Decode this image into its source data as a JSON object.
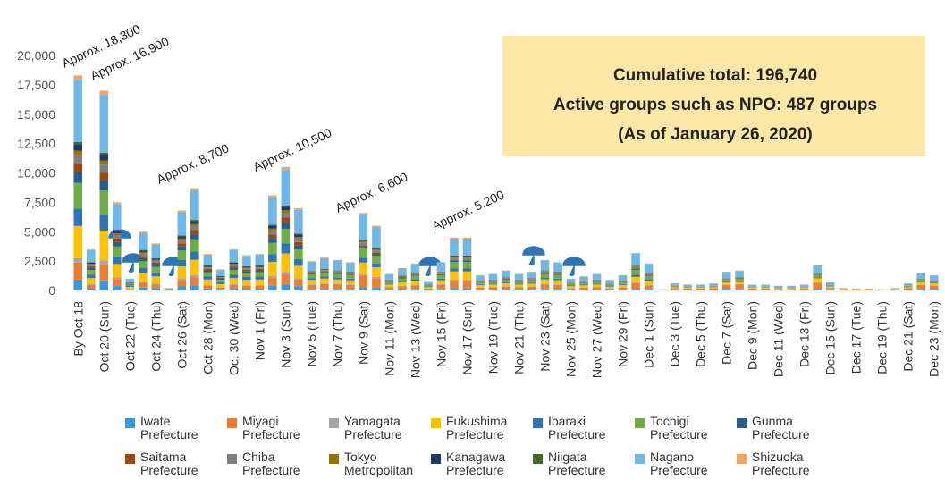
{
  "chart_data": {
    "type": "stacked_bar",
    "categories": [
      "By Oct 18",
      null,
      "Oct 20 (Sun)",
      null,
      "Oct 22 (Tue)",
      null,
      "Oct 24 (Thu)",
      null,
      "Oct 26 (Sat)",
      null,
      "Oct 28 (Mon)",
      null,
      "Oct 30 (Wed)",
      null,
      "Nov 1 (Fri)",
      null,
      "Nov 3 (Sun)",
      null,
      "Nov 5 (Tue)",
      null,
      "Nov 7 (Thu)",
      null,
      "Nov 9 (Sat)",
      null,
      "Nov 11 (Mon)",
      null,
      "Nov 13 (Wed)",
      null,
      "Nov 15 (Fri)",
      null,
      "Nov 17 (Sun)",
      null,
      "Nov 19 (Tue)",
      null,
      "Nov 21 (Thu)",
      null,
      "Nov 23 (Sat)",
      null,
      "Nov 25 (Mon)",
      null,
      "Nov 27 (Wed)",
      null,
      "Nov 29 (Fri)",
      null,
      "Dec 1 (Sun)",
      null,
      "Dec 3 (Tue)",
      null,
      "Dec 5 (Thu)",
      null,
      "Dec 7 (Sat)",
      null,
      "Dec 9 (Mon)",
      null,
      "Dec 11 (Wed)",
      null,
      "Dec 13 (Fri)",
      null,
      "Dec 15 (Sun)",
      null,
      "Dec 17 (Tue)",
      null,
      "Dec 19 (Thu)",
      null,
      "Dec 21 (Sat)",
      null,
      "Dec 23 (Mon)"
    ],
    "ylim": [
      0,
      20000
    ],
    "yticks": [
      0,
      {
        "value": 2500,
        "label": "2,500"
      },
      {
        "value": 5000,
        "label": "5,000"
      },
      {
        "value": 7500,
        "label": "7,500"
      },
      {
        "value": 10000,
        "label": "10,000"
      },
      {
        "value": 12500,
        "label": "12,500"
      },
      {
        "value": 15000,
        "label": "15,000"
      },
      {
        "value": 17500,
        "label": "17,500"
      },
      {
        "value": 20000,
        "label": "20,000"
      }
    ],
    "annotations": [
      "Approx. 18,300",
      "Approx. 16,900",
      "Approx. 8,700",
      "Approx. 10,500",
      "Approx. 6,600",
      "Approx. 5,200"
    ],
    "callout": [
      "Cumulative total: 196,740",
      "Active groups such as NPO: 487 groups",
      "(As of January 26, 2020)"
    ],
    "series": [
      {
        "name": "Iwate Prefecture",
        "color": "#3a9ad9",
        "values": [
          915,
          175,
          850,
          375,
          50,
          250,
          200,
          10,
          340,
          435,
          155,
          90,
          175,
          150,
          155,
          405,
          525,
          350,
          100,
          112,
          104,
          96,
          264,
          220,
          56,
          76,
          92,
          32,
          96,
          180,
          180,
          52,
          56,
          68,
          56,
          64,
          104,
          96,
          40,
          48,
          56,
          36,
          52,
          128,
          92,
          5,
          30,
          25,
          25,
          30,
          80,
          85,
          25,
          25,
          20,
          20,
          25,
          110,
          35,
          10,
          8,
          8,
          5,
          10,
          30,
          75,
          65
        ]
      },
      {
        "name": "Miyagi Prefecture",
        "color": "#ed7d31",
        "values": [
          1464,
          280,
          1360,
          600,
          80,
          400,
          320,
          16,
          544,
          696,
          248,
          144,
          280,
          240,
          248,
          648,
          840,
          560,
          375,
          420,
          390,
          360,
          990,
          825,
          210,
          285,
          345,
          120,
          360,
          675,
          675,
          195,
          210,
          255,
          210,
          240,
          390,
          360,
          150,
          180,
          210,
          135,
          195,
          480,
          345,
          25,
          150,
          125,
          125,
          150,
          400,
          425,
          125,
          125,
          100,
          100,
          125,
          550,
          175,
          50,
          38,
          38,
          25,
          50,
          150,
          375,
          325
        ]
      },
      {
        "name": "Yamagata Prefecture",
        "color": "#a5a5a5",
        "values": [
          366,
          70,
          340,
          150,
          20,
          100,
          80,
          4,
          136,
          174,
          62,
          36,
          70,
          60,
          62,
          162,
          210,
          140,
          50,
          56,
          52,
          48,
          132,
          110,
          28,
          38,
          46,
          16,
          48,
          90,
          90,
          26,
          28,
          34,
          28,
          32,
          52,
          48,
          20,
          24,
          28,
          18,
          26,
          64,
          46,
          2,
          12,
          10,
          10,
          12,
          32,
          34,
          10,
          10,
          8,
          8,
          10,
          44,
          14,
          4,
          3,
          3,
          2,
          4,
          12,
          30,
          26
        ]
      },
      {
        "name": "Fukushima Prefecture",
        "color": "#ffc000",
        "values": [
          2745,
          525,
          2550,
          1125,
          150,
          750,
          600,
          30,
          1020,
          1305,
          465,
          270,
          525,
          450,
          465,
          1215,
          1575,
          1050,
          375,
          420,
          390,
          360,
          990,
          825,
          210,
          285,
          345,
          120,
          360,
          675,
          675,
          195,
          210,
          255,
          210,
          240,
          390,
          360,
          150,
          180,
          210,
          135,
          195,
          480,
          345,
          15,
          90,
          75,
          75,
          90,
          240,
          255,
          75,
          75,
          60,
          60,
          75,
          330,
          105,
          30,
          23,
          23,
          15,
          30,
          90,
          225,
          195
        ]
      },
      {
        "name": "Ibaraki Prefecture",
        "color": "#2e75b6",
        "values": [
          1464,
          280,
          1360,
          600,
          80,
          400,
          320,
          16,
          544,
          696,
          248,
          144,
          280,
          240,
          248,
          648,
          840,
          560,
          150,
          168,
          156,
          144,
          396,
          330,
          84,
          114,
          138,
          48,
          144,
          270,
          270,
          78,
          84,
          102,
          84,
          96,
          156,
          144,
          60,
          72,
          84,
          54,
          78,
          192,
          138,
          3,
          18,
          15,
          15,
          18,
          48,
          51,
          15,
          15,
          12,
          12,
          15,
          66,
          21,
          6,
          5,
          5,
          3,
          6,
          18,
          45,
          39
        ]
      },
      {
        "name": "Tochigi Prefecture",
        "color": "#70ad47",
        "values": [
          2196,
          420,
          2040,
          900,
          120,
          600,
          480,
          24,
          816,
          1044,
          372,
          216,
          420,
          360,
          372,
          972,
          1260,
          840,
          300,
          336,
          312,
          288,
          792,
          660,
          168,
          228,
          276,
          96,
          288,
          540,
          540,
          156,
          168,
          204,
          168,
          192,
          312,
          288,
          120,
          144,
          168,
          108,
          156,
          384,
          276,
          8,
          48,
          40,
          40,
          48,
          128,
          136,
          40,
          40,
          32,
          32,
          40,
          176,
          56,
          16,
          12,
          12,
          8,
          16,
          48,
          120,
          104
        ]
      },
      {
        "name": "Gunma Prefecture",
        "color": "#255e91",
        "values": [
          915,
          175,
          850,
          375,
          50,
          250,
          200,
          10,
          340,
          435,
          155,
          90,
          175,
          150,
          155,
          405,
          525,
          350,
          50,
          56,
          52,
          48,
          132,
          110,
          28,
          38,
          46,
          16,
          48,
          90,
          90,
          26,
          28,
          34,
          28,
          32,
          52,
          48,
          20,
          24,
          28,
          18,
          26,
          64,
          46,
          0,
          0,
          0,
          0,
          0,
          0,
          0,
          0,
          0,
          0,
          0,
          0,
          0,
          0,
          0,
          0,
          0,
          0,
          0,
          0,
          0,
          0
        ]
      },
      {
        "name": "Saitama Prefecture",
        "color": "#9e480e",
        "values": [
          732,
          140,
          680,
          300,
          40,
          200,
          160,
          8,
          272,
          348,
          124,
          72,
          140,
          120,
          124,
          324,
          420,
          280,
          50,
          56,
          52,
          48,
          132,
          110,
          28,
          38,
          46,
          16,
          48,
          90,
          90,
          26,
          28,
          34,
          28,
          32,
          52,
          48,
          20,
          24,
          28,
          18,
          26,
          64,
          46,
          2,
          12,
          10,
          10,
          12,
          32,
          34,
          10,
          10,
          8,
          8,
          10,
          44,
          14,
          4,
          3,
          3,
          2,
          4,
          12,
          30,
          26
        ]
      },
      {
        "name": "Chiba Prefecture",
        "color": "#7f7f7f",
        "values": [
          732,
          140,
          680,
          300,
          40,
          200,
          160,
          8,
          272,
          348,
          124,
          72,
          140,
          120,
          124,
          324,
          420,
          280,
          100,
          112,
          104,
          96,
          264,
          220,
          56,
          76,
          92,
          32,
          96,
          180,
          180,
          52,
          56,
          68,
          56,
          64,
          104,
          96,
          40,
          48,
          56,
          36,
          52,
          128,
          92,
          3,
          18,
          15,
          15,
          18,
          48,
          51,
          15,
          15,
          12,
          12,
          15,
          66,
          21,
          6,
          5,
          5,
          3,
          6,
          18,
          45,
          39
        ]
      },
      {
        "name": "Tokyo Metropolitan",
        "color": "#997300",
        "values": [
          366,
          70,
          340,
          150,
          20,
          100,
          80,
          4,
          136,
          174,
          62,
          36,
          70,
          60,
          62,
          162,
          210,
          140,
          50,
          56,
          52,
          48,
          132,
          110,
          28,
          38,
          46,
          16,
          48,
          90,
          90,
          26,
          28,
          34,
          28,
          32,
          52,
          48,
          20,
          24,
          28,
          18,
          26,
          64,
          46,
          0,
          0,
          0,
          0,
          0,
          0,
          0,
          0,
          0,
          0,
          0,
          0,
          0,
          0,
          0,
          0,
          0,
          0,
          0,
          0,
          0,
          0
        ]
      },
      {
        "name": "Kanagawa Prefecture",
        "color": "#203864",
        "values": [
          549,
          105,
          510,
          225,
          30,
          150,
          120,
          6,
          204,
          261,
          93,
          54,
          105,
          90,
          93,
          243,
          315,
          210,
          25,
          28,
          26,
          24,
          66,
          55,
          14,
          19,
          23,
          8,
          24,
          45,
          45,
          13,
          14,
          17,
          14,
          16,
          26,
          24,
          10,
          12,
          14,
          9,
          13,
          32,
          23,
          0,
          0,
          0,
          0,
          0,
          0,
          0,
          0,
          0,
          0,
          0,
          0,
          0,
          0,
          0,
          0,
          0,
          0,
          0,
          0,
          0,
          0
        ]
      },
      {
        "name": "Niigata Prefecture",
        "color": "#43682b",
        "values": [
          183,
          35,
          170,
          75,
          10,
          50,
          40,
          2,
          68,
          87,
          31,
          18,
          35,
          30,
          31,
          81,
          105,
          70,
          25,
          28,
          26,
          24,
          66,
          55,
          14,
          19,
          23,
          8,
          24,
          45,
          45,
          13,
          14,
          17,
          14,
          16,
          26,
          24,
          10,
          12,
          14,
          9,
          13,
          32,
          23,
          2,
          12,
          10,
          10,
          12,
          32,
          34,
          10,
          10,
          8,
          8,
          10,
          44,
          14,
          4,
          3,
          3,
          2,
          4,
          12,
          30,
          26
        ]
      },
      {
        "name": "Nagano Prefecture",
        "color": "#6fb7e6",
        "values": [
          5307,
          1015,
          4930,
          2175,
          290,
          1450,
          1160,
          58,
          1972,
          2523,
          899,
          522,
          1015,
          870,
          899,
          2349,
          3045,
          2030,
          800,
          896,
          832,
          768,
          2112,
          1760,
          448,
          608,
          736,
          256,
          768,
          1440,
          1440,
          416,
          448,
          544,
          448,
          512,
          832,
          768,
          320,
          384,
          448,
          288,
          416,
          1024,
          736,
          33,
          198,
          165,
          165,
          198,
          528,
          561,
          165,
          165,
          132,
          132,
          165,
          726,
          231,
          66,
          50,
          50,
          33,
          66,
          198,
          495,
          429
        ]
      },
      {
        "name": "Shizuoka Prefecture",
        "color": "#f4a460",
        "values": [
          366,
          70,
          340,
          150,
          20,
          100,
          80,
          4,
          136,
          174,
          62,
          36,
          70,
          60,
          62,
          162,
          210,
          140,
          50,
          56,
          52,
          48,
          132,
          110,
          28,
          38,
          46,
          16,
          48,
          90,
          90,
          26,
          28,
          34,
          28,
          32,
          52,
          48,
          20,
          24,
          28,
          18,
          26,
          64,
          46,
          2,
          12,
          10,
          10,
          12,
          32,
          34,
          10,
          10,
          8,
          8,
          10,
          44,
          14,
          4,
          3,
          3,
          2,
          4,
          12,
          30,
          26
        ]
      }
    ]
  }
}
